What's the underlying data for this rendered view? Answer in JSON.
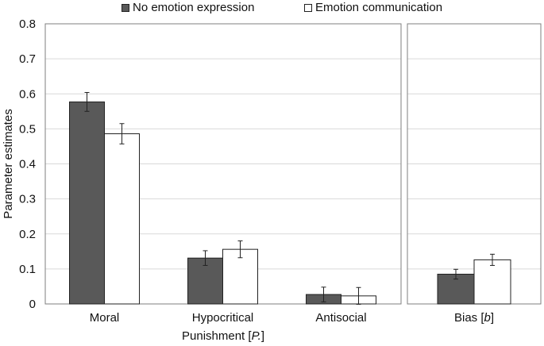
{
  "chart_data": {
    "type": "bar",
    "ylabel": "Parameter estimates",
    "ylim": [
      0,
      0.8
    ],
    "yticks": [
      "0",
      "0.1",
      "0.2",
      "0.3",
      "0.4",
      "0.5",
      "0.6",
      "0.7",
      "0.8"
    ],
    "legend": {
      "placement": "top",
      "entries": [
        {
          "name": "No emotion expression",
          "color": "#595959"
        },
        {
          "name": "Emotion communication",
          "color": "#ffffff"
        }
      ]
    },
    "panels": [
      {
        "xlabel": "Punishment [P.]",
        "categories": [
          "Moral",
          "Hypocritical",
          "Antisocial"
        ],
        "series": [
          {
            "name": "No emotion expression",
            "values": [
              0.577,
              0.131,
              0.027
            ],
            "errors": [
              0.027,
              0.021,
              0.021
            ]
          },
          {
            "name": "Emotion communication",
            "values": [
              0.486,
              0.156,
              0.023
            ],
            "errors": [
              0.029,
              0.024,
              0.024
            ]
          }
        ]
      },
      {
        "xlabel": "Bias [b]",
        "categories": [
          ""
        ],
        "series": [
          {
            "name": "No emotion expression",
            "values": [
              0.085
            ],
            "errors": [
              0.014
            ]
          },
          {
            "name": "Emotion communication",
            "values": [
              0.126
            ],
            "errors": [
              0.016
            ]
          }
        ]
      }
    ]
  }
}
